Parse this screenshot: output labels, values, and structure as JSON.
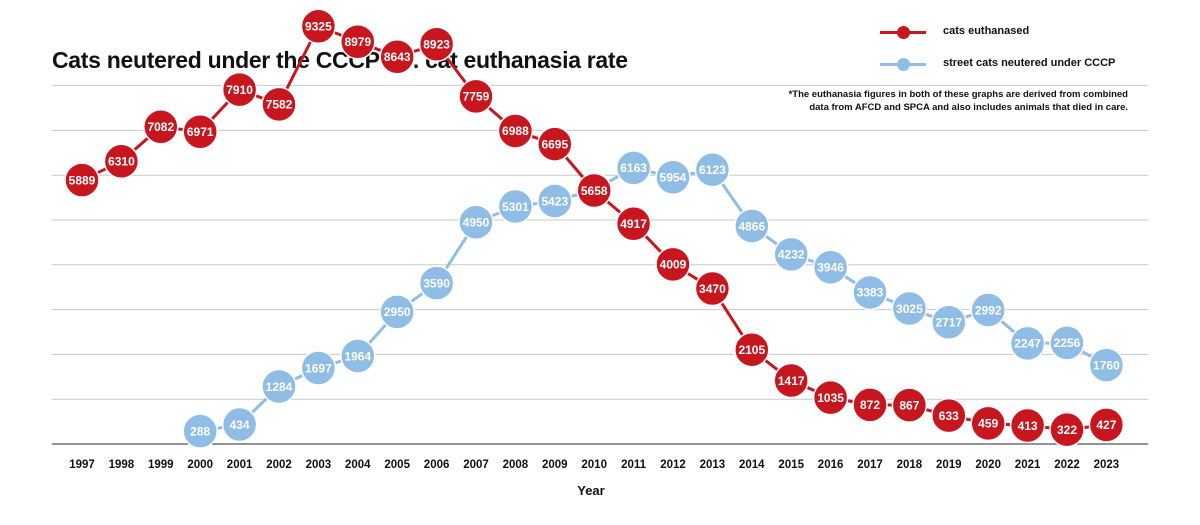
{
  "chart_data": {
    "type": "line",
    "title": "Cats neutered under the CCCP Vs. cat euthanasia rate",
    "note_lines": [
      "*The euthanasia figures in both of these graphs are derived from combined",
      "data from AFCD and SPCA and also includes animals that died in care."
    ],
    "xlabel": "Year",
    "ylabel": "",
    "ylim": [
      0,
      10000
    ],
    "grid": "horizontal",
    "legend_position": "top-right",
    "x": [
      "1997",
      "1998",
      "1999",
      "2000",
      "2001",
      "2002",
      "2003",
      "2004",
      "2005",
      "2006",
      "2007",
      "2008",
      "2009",
      "2010",
      "2011",
      "2012",
      "2013",
      "2014",
      "2015",
      "2016",
      "2017",
      "2018",
      "2019",
      "2020",
      "2021",
      "2022",
      "2023"
    ],
    "series": [
      {
        "name": "cats euthanased",
        "color": "#c8161e",
        "values": [
          5889,
          6310,
          7082,
          6971,
          7910,
          7582,
          9325,
          8979,
          8643,
          8923,
          7759,
          6988,
          6695,
          5658,
          4917,
          4009,
          3470,
          2105,
          1417,
          1035,
          872,
          867,
          633,
          459,
          413,
          322,
          427
        ]
      },
      {
        "name": "street cats neutered under CCCP",
        "color": "#8fbde6",
        "values": [
          null,
          null,
          null,
          288,
          434,
          1284,
          1697,
          1964,
          2950,
          3590,
          4950,
          5301,
          5423,
          5675,
          6163,
          5954,
          6123,
          4866,
          4232,
          3946,
          3383,
          3025,
          2717,
          2992,
          2247,
          2256,
          1760
        ]
      }
    ]
  }
}
